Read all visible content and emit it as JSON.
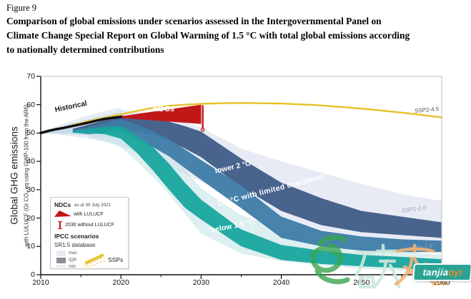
{
  "figure": {
    "label": "Figure 9",
    "title_lines": [
      "Comparison of global emissions under scenarios assessed in the Intergovernmental Panel on",
      "Climate Change Special Report on Global Warming of 1.5 °C with total global emissions according",
      "to nationally determined contributions"
    ]
  },
  "chart_data": {
    "type": "area",
    "title": "",
    "xlabel": "",
    "ylabel": "Global GHG emissions",
    "ylabel_sub": "with LULUCF (Gt CO₂ eq using GWP-100 from the AR6)",
    "xlim": [
      2010,
      2060
    ],
    "ylim": [
      0,
      70
    ],
    "x_ticks": [
      2010,
      2020,
      2030,
      2040,
      2050,
      2060
    ],
    "x_minor_ticks": [
      2015,
      2025,
      2035,
      2045,
      2055
    ],
    "y_ticks": [
      0,
      10,
      20,
      30,
      40,
      50,
      60,
      70
    ],
    "grid": false,
    "legend_position": "lower-left inset",
    "historical": {
      "label": "Historical",
      "color": "#0d0d0d",
      "x": [
        2010,
        2011,
        2012,
        2013,
        2014,
        2015,
        2016,
        2017,
        2018,
        2019,
        2020
      ],
      "y": [
        50,
        50.8,
        51.4,
        51.9,
        52.5,
        53.1,
        53.7,
        54.4,
        55,
        55.4,
        55.7
      ]
    },
    "ndc": {
      "label": "NDCs",
      "color": "#c21717",
      "wedge_x": [
        2019.7,
        2030
      ],
      "wedge_upper": [
        55.8,
        60.0
      ],
      "wedge_lower": [
        55.4,
        53.2
      ],
      "bar_x": 2030.2,
      "bar_range_without_lulucf": [
        51.2,
        59.8
      ]
    },
    "ssp245": {
      "label": "SSP2-4.5",
      "color": "#e6c229",
      "x": [
        2014,
        2016,
        2018,
        2020,
        2022,
        2024,
        2026,
        2028,
        2030,
        2033,
        2036,
        2040,
        2044,
        2048,
        2052,
        2056,
        2060
      ],
      "y": [
        52.8,
        54.2,
        55.4,
        56.6,
        57.8,
        58.9,
        59.6,
        60,
        60.3,
        60.55,
        60.6,
        60.4,
        59.9,
        59.1,
        58.1,
        56.9,
        55.5
      ]
    },
    "side_labels": {
      "ssp126": "SSP1-2.6",
      "ssp119": "SSP1-1.9"
    },
    "bands": [
      {
        "id": "historical-range-outer",
        "label": "",
        "color": "#cfe0ed",
        "opacity": 0.55,
        "x": [
          2010,
          2012,
          2014,
          2016,
          2018,
          2020
        ],
        "upper": [
          50.3,
          52.5,
          54.5,
          56.3,
          57.8,
          59
        ],
        "lower": [
          49.7,
          49.5,
          48.8,
          48,
          47,
          46
        ]
      },
      {
        "id": "historical-range-inner",
        "label": "",
        "color": "#a8c6dd",
        "opacity": 0.5,
        "x": [
          2010,
          2012,
          2014,
          2016,
          2018,
          2020
        ],
        "upper": [
          50.2,
          51.8,
          53.4,
          54.8,
          56.2,
          57.2
        ],
        "lower": [
          49.8,
          49.9,
          49.6,
          49.2,
          48.6,
          48.2
        ]
      },
      {
        "id": "range-2c-max-min",
        "label": "",
        "color": "#d8ddee",
        "opacity": 0.6,
        "x": [
          2016,
          2018,
          2020,
          2022,
          2024,
          2026,
          2028,
          2030,
          2035,
          2040,
          2045,
          2050,
          2055,
          2060
        ],
        "upper": [
          54,
          56,
          58.2,
          57.5,
          56.5,
          55.3,
          53.8,
          52,
          44.5,
          40,
          36,
          32,
          28.5,
          26
        ],
        "lower": [
          49,
          47.5,
          45.5,
          43,
          40.5,
          38,
          35.5,
          33,
          26,
          20,
          16,
          13,
          10.5,
          8.5
        ]
      },
      {
        "id": "range-1p5-max-min",
        "label": "",
        "color": "#c6e4e6",
        "opacity": 0.6,
        "x": [
          2016,
          2018,
          2020,
          2022,
          2024,
          2026,
          2028,
          2030,
          2035,
          2040,
          2045,
          2050,
          2055,
          2060
        ],
        "upper": [
          52.5,
          54,
          55.5,
          52.5,
          48.5,
          43.5,
          37,
          30.5,
          21,
          16,
          12.5,
          10,
          8.2,
          7
        ],
        "lower": [
          48.5,
          47,
          45,
          40,
          34.5,
          28.5,
          21.5,
          14.5,
          7.5,
          4.8,
          3.2,
          2.2,
          1.4,
          0.8
        ]
      },
      {
        "id": "lower-2c-iqr",
        "label": "lower 2 °C",
        "color": "#3f5c86",
        "opacity": 0.95,
        "x": [
          2014,
          2016,
          2018,
          2020,
          2022,
          2024,
          2026,
          2028,
          2030,
          2035,
          2040,
          2045,
          2050,
          2055,
          2060
        ],
        "upper": [
          51.5,
          53,
          54.6,
          56.2,
          55.8,
          55,
          54,
          52.4,
          50.5,
          41,
          32.5,
          27,
          22.5,
          20.5,
          18.5
        ],
        "lower": [
          50.5,
          50.6,
          51.2,
          52,
          50.6,
          49.4,
          47.3,
          44.5,
          41.5,
          31,
          22.5,
          17.5,
          15,
          14,
          13
        ]
      },
      {
        "id": "1p5-limited-overshoot-iqr",
        "label": "1.5 °C with limited overshoot",
        "color": "#3d7ca6",
        "opacity": 0.95,
        "x": [
          2014,
          2016,
          2018,
          2020,
          2022,
          2024,
          2026,
          2028,
          2030,
          2035,
          2040,
          2045,
          2050,
          2055,
          2060
        ],
        "upper": [
          51,
          52.2,
          53.6,
          55,
          53,
          50.8,
          47.8,
          44.2,
          40.5,
          31.5,
          20.5,
          15.5,
          13.5,
          12.5,
          12
        ],
        "lower": [
          50.2,
          49.6,
          50,
          50.6,
          47.6,
          45,
          41.8,
          37.6,
          33.5,
          23.5,
          13,
          10,
          8.5,
          8,
          8
        ]
      },
      {
        "id": "below-1p5-iqr",
        "label": "below 1.5 °C",
        "color": "#17a59e",
        "opacity": 0.95,
        "x": [
          2014,
          2016,
          2018,
          2020,
          2022,
          2024,
          2026,
          2028,
          2030,
          2035,
          2040,
          2045,
          2050,
          2055,
          2060
        ],
        "upper": [
          50.8,
          51.4,
          52.2,
          52.4,
          49,
          45,
          39.2,
          32.4,
          26.5,
          16,
          10.5,
          8.5,
          7,
          6.3,
          5.5
        ],
        "lower": [
          50.1,
          49.9,
          49.6,
          48,
          43,
          36.8,
          30,
          23.6,
          19.5,
          10,
          5.2,
          3.8,
          3,
          2.4,
          1
        ]
      }
    ]
  },
  "legend": {
    "ndcs_bold": "NDCs",
    "ndcs_date": "as at 30 July 2021",
    "with_lulucf": "with LULUCF",
    "without_lulucf": "2030 without LULUCF",
    "ipcc_title": "IPCC scenarios",
    "sr15": "SR1.5 database",
    "max": "max",
    "iqr": "IQR",
    "min": "min",
    "ssps": "SSPs"
  },
  "watermark": {
    "characters": "易碳家",
    "badge_text_white": "tanjia",
    "badge_text_orange": "oyi",
    "badge_domain": ".com",
    "colors": {
      "green": "#3aa551",
      "pale_mint": "#cde9da",
      "pale_orange": "#f2b279",
      "badge_bg": "#2aa394",
      "badge_orange": "#f08a24"
    }
  }
}
